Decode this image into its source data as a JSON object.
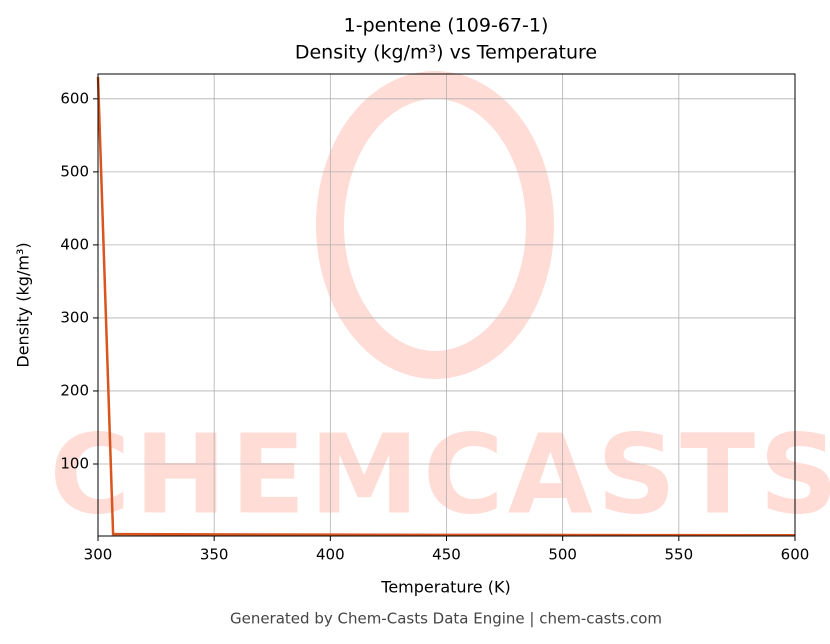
{
  "chart_data": {
    "type": "line",
    "title": "1-pentene (109-67-1)",
    "subtitle": "Density (kg/m³) vs Temperature",
    "x_label": "Temperature (K)",
    "y_label": "Density (kg/m³)",
    "footer": "Generated by Chem-Casts Data Engine | chem-casts.com",
    "watermark": "CHEMCASTS",
    "x": [
      300,
      306.5,
      350,
      400,
      450,
      500,
      550,
      600
    ],
    "series": [
      {
        "name": "Density",
        "color": "#d9541e",
        "values": [
          630,
          4,
          3.6,
          3.3,
          3.0,
          2.8,
          2.6,
          2.4
        ]
      }
    ],
    "xlim": [
      300,
      600
    ],
    "xticks": [
      300,
      350,
      400,
      450,
      500,
      550,
      600
    ],
    "ylim": [
      1.4,
      634
    ],
    "yticks": [
      100,
      200,
      300,
      400,
      500,
      600
    ],
    "grid": true
  }
}
